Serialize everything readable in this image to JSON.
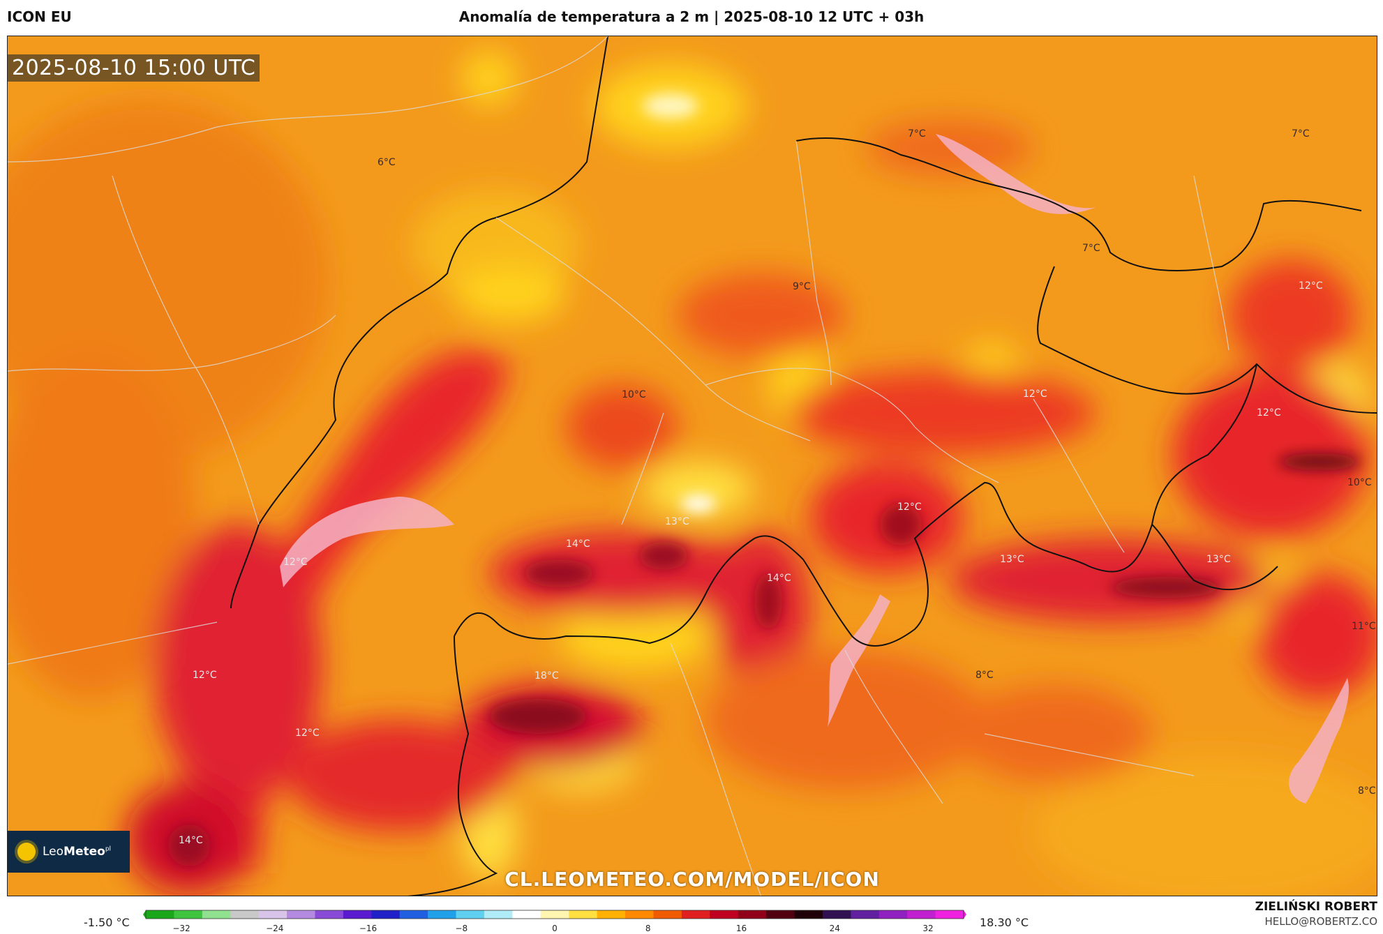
{
  "header": {
    "model": "ICON EU",
    "title": "Anomalía de temperatura a 2 m | 2025-08-10 12 UTC + 03h"
  },
  "map": {
    "timestamp": "2025-08-10 15:00 UTC",
    "watermark": "CL.LEOMETEO.COM/MODEL/ICON",
    "logo": {
      "brand_light": "Leo",
      "brand_bold": "Meteo",
      "suffix": "pl"
    },
    "labels": [
      {
        "text": "6°C"
      },
      {
        "text": "7°C"
      },
      {
        "text": "7°C"
      },
      {
        "text": "7°C"
      },
      {
        "text": "9°C"
      },
      {
        "text": "10°C"
      },
      {
        "text": "12°C"
      },
      {
        "text": "12°C"
      },
      {
        "text": "12°C"
      },
      {
        "text": "12°C"
      },
      {
        "text": "14°C"
      },
      {
        "text": "13°C"
      },
      {
        "text": "10°C"
      },
      {
        "text": "12°C"
      },
      {
        "text": "14°C"
      },
      {
        "text": "13°C"
      },
      {
        "text": "13°C"
      },
      {
        "text": "11°C"
      },
      {
        "text": "12°C"
      },
      {
        "text": "18°C"
      },
      {
        "text": "8°C"
      },
      {
        "text": "12°C"
      },
      {
        "text": "8°C"
      },
      {
        "text": "14°C"
      }
    ]
  },
  "legend": {
    "min_label": "-1.50 °C",
    "max_label": "18.30 °C",
    "ticks": [
      "−32",
      "−24",
      "−16",
      "−8",
      "0",
      "8",
      "16",
      "24",
      "32"
    ],
    "colors": [
      "#1aa81a",
      "#3fc43f",
      "#8fe08f",
      "#c8c8c8",
      "#d8c4e8",
      "#b48ae0",
      "#8a4ad8",
      "#5a1ad0",
      "#2020c8",
      "#2060e0",
      "#20a0e8",
      "#60d0f0",
      "#b0ecf8",
      "#ffffff",
      "#fff4b0",
      "#ffe040",
      "#ffb000",
      "#ff8a00",
      "#f05a00",
      "#e02020",
      "#c00020",
      "#900018",
      "#500010",
      "#200008",
      "#301050",
      "#6020a0",
      "#9020c0",
      "#c020d0",
      "#f020e0"
    ]
  },
  "credit": {
    "name": "ZIELIŃSKI ROBERT",
    "email": "HELLO@ROBERTZ.CO"
  }
}
